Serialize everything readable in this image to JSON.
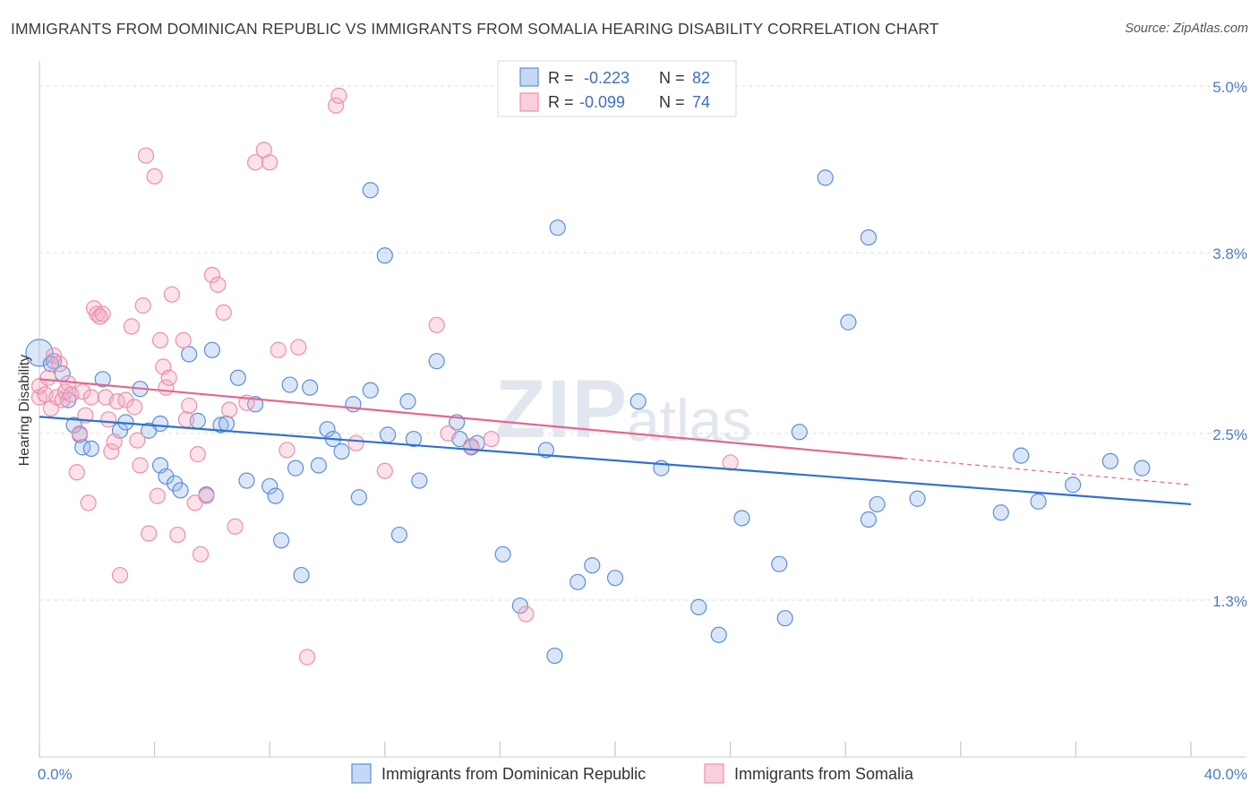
{
  "title": "IMMIGRANTS FROM DOMINICAN REPUBLIC VS IMMIGRANTS FROM SOMALIA HEARING DISABILITY CORRELATION CHART",
  "source": "Source: ZipAtlas.com",
  "watermark": {
    "zip": "ZIP",
    "atlas": "atlas"
  },
  "colors": {
    "blue": "#5b8fd6",
    "blue_line": "#2e72cf",
    "pink": "#ee8fab",
    "pink_line": "#e46691",
    "tick": "#4a7cc7"
  },
  "legend": {
    "r_label": "R =",
    "n_label": "N =",
    "series": [
      {
        "r": "-0.223",
        "n": "82"
      },
      {
        "r": "-0.099",
        "n": "74"
      }
    ]
  },
  "chart_data": {
    "type": "scatter",
    "title": "IMMIGRANTS FROM DOMINICAN REPUBLIC VS IMMIGRANTS FROM SOMALIA HEARING DISABILITY CORRELATION CHART",
    "xlabel": "",
    "ylabel": "Hearing Disability",
    "xlim": [
      0,
      40
    ],
    "ylim": [
      0,
      5.25
    ],
    "x_tick_labels": [
      "0.0%",
      "40.0%"
    ],
    "y_ticks": [
      {
        "value": 1.3,
        "label": "1.3%"
      },
      {
        "value": 2.5,
        "label": "2.5%"
      },
      {
        "value": 3.8,
        "label": "3.8%"
      },
      {
        "value": 5.0,
        "label": "5.0%"
      }
    ],
    "grid": "dashed horizontal",
    "legend_position": "top-center",
    "series": [
      {
        "name": "Immigrants from Dominican Republic",
        "color": "#5b8fd6",
        "trend": {
          "x0": 0,
          "y0": 2.62,
          "x1": 40,
          "y1": 1.99
        },
        "points": [
          [
            0.0,
            3.08
          ],
          [
            0.5,
            3.02
          ],
          [
            0.8,
            2.93
          ],
          [
            0.4,
            3.0
          ],
          [
            1.0,
            2.74
          ],
          [
            1.2,
            2.56
          ],
          [
            1.4,
            2.49
          ],
          [
            1.5,
            2.4
          ],
          [
            1.8,
            2.39
          ],
          [
            2.2,
            2.89
          ],
          [
            2.8,
            2.52
          ],
          [
            3.0,
            2.58
          ],
          [
            3.5,
            2.82
          ],
          [
            3.8,
            2.52
          ],
          [
            4.2,
            2.57
          ],
          [
            4.2,
            2.27
          ],
          [
            4.4,
            2.19
          ],
          [
            4.7,
            2.14
          ],
          [
            4.9,
            2.09
          ],
          [
            5.2,
            3.07
          ],
          [
            5.5,
            2.59
          ],
          [
            5.8,
            2.06
          ],
          [
            6.0,
            3.1
          ],
          [
            6.3,
            2.56
          ],
          [
            6.5,
            2.57
          ],
          [
            6.9,
            2.9
          ],
          [
            7.2,
            2.16
          ],
          [
            7.5,
            2.71
          ],
          [
            8.0,
            2.12
          ],
          [
            8.2,
            2.05
          ],
          [
            8.4,
            1.73
          ],
          [
            8.7,
            2.85
          ],
          [
            8.9,
            2.25
          ],
          [
            9.1,
            1.48
          ],
          [
            9.4,
            2.83
          ],
          [
            9.7,
            2.27
          ],
          [
            10.0,
            2.53
          ],
          [
            10.2,
            2.46
          ],
          [
            10.5,
            2.37
          ],
          [
            10.9,
            2.71
          ],
          [
            11.1,
            2.04
          ],
          [
            11.5,
            2.81
          ],
          [
            11.5,
            4.25
          ],
          [
            12.0,
            3.78
          ],
          [
            12.1,
            2.49
          ],
          [
            12.5,
            1.77
          ],
          [
            12.8,
            2.73
          ],
          [
            13.0,
            2.46
          ],
          [
            13.2,
            2.16
          ],
          [
            13.8,
            3.02
          ],
          [
            14.5,
            2.58
          ],
          [
            14.6,
            2.46
          ],
          [
            15.0,
            2.4
          ],
          [
            15.2,
            2.43
          ],
          [
            16.1,
            1.63
          ],
          [
            16.7,
            1.26
          ],
          [
            17.6,
            2.38
          ],
          [
            17.9,
            0.9
          ],
          [
            18.0,
            3.98
          ],
          [
            18.7,
            1.43
          ],
          [
            19.2,
            1.55
          ],
          [
            20.0,
            1.46
          ],
          [
            20.8,
            2.73
          ],
          [
            21.6,
            2.25
          ],
          [
            22.9,
            1.25
          ],
          [
            23.6,
            1.05
          ],
          [
            24.4,
            1.89
          ],
          [
            25.7,
            1.56
          ],
          [
            25.9,
            1.17
          ],
          [
            26.4,
            2.51
          ],
          [
            27.3,
            4.34
          ],
          [
            28.1,
            3.3
          ],
          [
            28.8,
            3.91
          ],
          [
            28.8,
            1.88
          ],
          [
            29.1,
            1.99
          ],
          [
            30.5,
            2.03
          ],
          [
            33.4,
            1.93
          ],
          [
            34.1,
            2.34
          ],
          [
            34.7,
            2.01
          ],
          [
            35.9,
            2.13
          ],
          [
            37.2,
            2.3
          ],
          [
            38.3,
            2.25
          ]
        ]
      },
      {
        "name": "Immigrants from Somalia",
        "color": "#ee8fab",
        "trend": {
          "x0": 0,
          "y0": 2.89,
          "x1": 30,
          "y1": 2.32,
          "dashed_to_x": 40,
          "dashed_to_y": 2.13
        },
        "points": [
          [
            0.0,
            2.76
          ],
          [
            0.0,
            2.84
          ],
          [
            0.2,
            2.78
          ],
          [
            0.3,
            2.9
          ],
          [
            0.4,
            2.68
          ],
          [
            0.5,
            3.06
          ],
          [
            0.6,
            2.76
          ],
          [
            0.7,
            3.0
          ],
          [
            0.8,
            2.74
          ],
          [
            0.9,
            2.8
          ],
          [
            1.0,
            2.86
          ],
          [
            1.1,
            2.78
          ],
          [
            1.3,
            2.22
          ],
          [
            1.4,
            2.5
          ],
          [
            1.5,
            2.8
          ],
          [
            1.6,
            2.63
          ],
          [
            1.7,
            2.0
          ],
          [
            1.8,
            2.76
          ],
          [
            1.9,
            3.4
          ],
          [
            2.0,
            3.36
          ],
          [
            2.1,
            3.34
          ],
          [
            2.2,
            3.36
          ],
          [
            2.3,
            2.76
          ],
          [
            2.4,
            2.6
          ],
          [
            2.5,
            2.37
          ],
          [
            2.6,
            2.44
          ],
          [
            2.7,
            2.73
          ],
          [
            2.8,
            1.48
          ],
          [
            3.0,
            2.74
          ],
          [
            3.2,
            3.27
          ],
          [
            3.3,
            2.69
          ],
          [
            3.4,
            2.45
          ],
          [
            3.5,
            2.27
          ],
          [
            3.6,
            3.42
          ],
          [
            3.7,
            4.5
          ],
          [
            3.8,
            1.78
          ],
          [
            4.0,
            4.35
          ],
          [
            4.1,
            2.05
          ],
          [
            4.2,
            3.17
          ],
          [
            4.3,
            2.98
          ],
          [
            4.4,
            2.83
          ],
          [
            4.5,
            2.9
          ],
          [
            4.6,
            3.5
          ],
          [
            4.8,
            1.77
          ],
          [
            5.0,
            3.17
          ],
          [
            5.1,
            2.6
          ],
          [
            5.2,
            2.7
          ],
          [
            5.4,
            2.0
          ],
          [
            5.5,
            2.35
          ],
          [
            5.6,
            1.63
          ],
          [
            5.8,
            2.05
          ],
          [
            6.0,
            3.64
          ],
          [
            6.2,
            3.57
          ],
          [
            6.4,
            3.37
          ],
          [
            6.6,
            2.67
          ],
          [
            6.8,
            1.83
          ],
          [
            7.2,
            2.72
          ],
          [
            7.5,
            4.45
          ],
          [
            7.8,
            4.54
          ],
          [
            8.0,
            4.45
          ],
          [
            8.3,
            3.1
          ],
          [
            8.6,
            2.38
          ],
          [
            9.0,
            3.12
          ],
          [
            9.3,
            0.89
          ],
          [
            10.3,
            4.86
          ],
          [
            10.4,
            4.93
          ],
          [
            11.0,
            2.43
          ],
          [
            12.0,
            2.23
          ],
          [
            13.8,
            3.28
          ],
          [
            14.2,
            2.5
          ],
          [
            15.0,
            2.41
          ],
          [
            15.7,
            2.46
          ],
          [
            16.9,
            1.2
          ],
          [
            24.0,
            2.29
          ]
        ]
      }
    ]
  },
  "bottom_legend": [
    "Immigrants from Dominican Republic",
    "Immigrants from Somalia"
  ]
}
